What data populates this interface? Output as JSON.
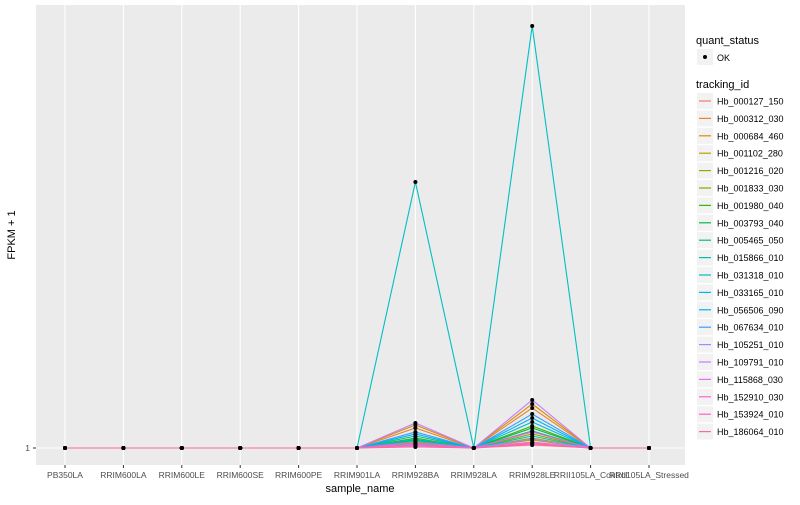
{
  "chart_data": {
    "type": "line",
    "xlabel": "sample_name",
    "ylabel": "FPKM + 1",
    "categories": [
      "PB350LA",
      "RRIM600LA",
      "RRIM600LE",
      "RRIM600SE",
      "RRIM600PE",
      "RRIM901LA",
      "RRIM928BA",
      "RRIM928LA",
      "RRIM928LE",
      "RRII105LA_Control",
      "RRII105LA_Stressed"
    ],
    "yticks": [
      1
    ],
    "ylim": [
      -0.7,
      45.3
    ],
    "grid": true,
    "legend_position": "right",
    "shape_legend": {
      "title": "quant_status",
      "entries": [
        "OK"
      ]
    },
    "color_legend_title": "tracking_id",
    "series": [
      {
        "name": "Hb_000127_150",
        "color": "#F8766D",
        "values": [
          1,
          1,
          1,
          1,
          1,
          1,
          1.3,
          1,
          1.5,
          1,
          1
        ]
      },
      {
        "name": "Hb_000312_030",
        "color": "#EA8331",
        "values": [
          1,
          1,
          1,
          1,
          1,
          1,
          3.0,
          1,
          5.0,
          1,
          1
        ]
      },
      {
        "name": "Hb_000684_460",
        "color": "#D89000",
        "values": [
          1,
          1,
          1,
          1,
          1,
          1,
          3.3,
          1,
          5.4,
          1,
          1
        ]
      },
      {
        "name": "Hb_001102_280",
        "color": "#C09B00",
        "values": [
          1,
          1,
          1,
          1,
          1,
          1,
          1.4,
          1,
          1.8,
          1,
          1
        ]
      },
      {
        "name": "Hb_001216_020",
        "color": "#A3A500",
        "values": [
          1,
          1,
          1,
          1,
          1,
          1,
          1.6,
          1,
          2.0,
          1,
          1
        ]
      },
      {
        "name": "Hb_001833_030",
        "color": "#7CAE00",
        "values": [
          1,
          1,
          1,
          1,
          1,
          1,
          1.5,
          1,
          2.4,
          1,
          1
        ]
      },
      {
        "name": "Hb_001980_040",
        "color": "#39B600",
        "values": [
          1,
          1,
          1,
          1,
          1,
          1,
          2.0,
          1,
          3.2,
          1,
          1
        ]
      },
      {
        "name": "Hb_003793_040",
        "color": "#00BB4E",
        "values": [
          1,
          1,
          1,
          1,
          1,
          1,
          1.8,
          1,
          3.0,
          1,
          1
        ]
      },
      {
        "name": "Hb_005465_050",
        "color": "#00BF7D",
        "values": [
          1,
          1,
          1,
          1,
          1,
          1,
          2.2,
          1,
          2.7,
          1,
          1
        ]
      },
      {
        "name": "Hb_015866_010",
        "color": "#00C1A3",
        "values": [
          1,
          1,
          1,
          1,
          1,
          1,
          1.7,
          1,
          2.2,
          1,
          1
        ]
      },
      {
        "name": "Hb_031318_010",
        "color": "#00BFC4",
        "values": [
          1,
          1,
          1,
          1,
          1,
          1,
          27.6,
          1,
          43.2,
          1,
          1
        ]
      },
      {
        "name": "Hb_033165_010",
        "color": "#00BAE0",
        "values": [
          1,
          1,
          1,
          1,
          1,
          1,
          1.9,
          1,
          3.6,
          1,
          1
        ]
      },
      {
        "name": "Hb_056506_090",
        "color": "#00B0F6",
        "values": [
          1,
          1,
          1,
          1,
          1,
          1,
          2.4,
          1,
          4.0,
          1,
          1
        ]
      },
      {
        "name": "Hb_067634_010",
        "color": "#35A2FF",
        "values": [
          1,
          1,
          1,
          1,
          1,
          1,
          2.6,
          1,
          4.4,
          1,
          1
        ]
      },
      {
        "name": "Hb_105251_010",
        "color": "#9590FF",
        "values": [
          1,
          1,
          1,
          1,
          1,
          1,
          1.4,
          1,
          1.9,
          1,
          1
        ]
      },
      {
        "name": "Hb_109791_010",
        "color": "#C77CFF",
        "values": [
          1,
          1,
          1,
          1,
          1,
          1,
          3.5,
          1,
          5.8,
          1,
          1
        ]
      },
      {
        "name": "Hb_115868_030",
        "color": "#E76BF3",
        "values": [
          1,
          1,
          1,
          1,
          1,
          1,
          1.2,
          1,
          1.6,
          1,
          1
        ]
      },
      {
        "name": "Hb_152910_030",
        "color": "#FA62DB",
        "values": [
          1,
          1,
          1,
          1,
          1,
          1,
          1.6,
          1,
          2.6,
          1,
          1
        ]
      },
      {
        "name": "Hb_153924_010",
        "color": "#FF62BC",
        "values": [
          1,
          1,
          1,
          1,
          1,
          1,
          1.3,
          1,
          1.4,
          1,
          1
        ]
      },
      {
        "name": "Hb_186064_010",
        "color": "#FF6C91",
        "values": [
          1,
          1,
          1,
          1,
          1,
          1,
          1.1,
          1,
          1.3,
          1,
          1
        ]
      }
    ]
  }
}
